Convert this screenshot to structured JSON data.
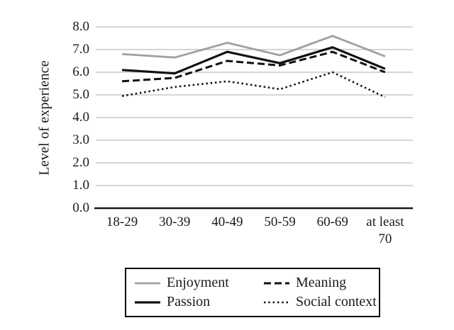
{
  "chart_data": {
    "type": "line",
    "title": "",
    "xlabel": "",
    "ylabel": "Level of experience",
    "categories": [
      "18-29",
      "30-39",
      "40-49",
      "50-59",
      "60-69",
      "at least\n70"
    ],
    "yticks": [
      0,
      1,
      2,
      3,
      4,
      5,
      6,
      7,
      8
    ],
    "ytick_labels": [
      "0.0",
      "1.0",
      "2.0",
      "3.0",
      "4.0",
      "5.0",
      "6.0",
      "7.0",
      "8.0"
    ],
    "ylim": [
      0,
      8
    ],
    "grid": true,
    "legend_position": "bottom-boxed",
    "colors": {
      "enjoyment_line": "#a0a0a0",
      "black_line": "#111111",
      "gridline": "#bdbdbd",
      "axis_line": "#1a1a1a"
    },
    "series": [
      {
        "name": "Enjoyment",
        "color": "#a0a0a0",
        "style": "solid",
        "width": 2.8,
        "values": [
          6.8,
          6.65,
          7.3,
          6.75,
          7.6,
          6.7
        ]
      },
      {
        "name": "Meaning",
        "color": "#111111",
        "style": "dashed",
        "width": 3.0,
        "values": [
          5.6,
          5.75,
          6.5,
          6.3,
          6.9,
          6.0
        ]
      },
      {
        "name": "Passion",
        "color": "#111111",
        "style": "solid",
        "width": 3.2,
        "values": [
          6.1,
          5.95,
          6.9,
          6.4,
          7.1,
          6.15
        ]
      },
      {
        "name": "Social context",
        "color": "#111111",
        "style": "dotted",
        "width": 2.6,
        "values": [
          4.95,
          5.35,
          5.6,
          5.25,
          6.0,
          4.9
        ]
      }
    ]
  }
}
